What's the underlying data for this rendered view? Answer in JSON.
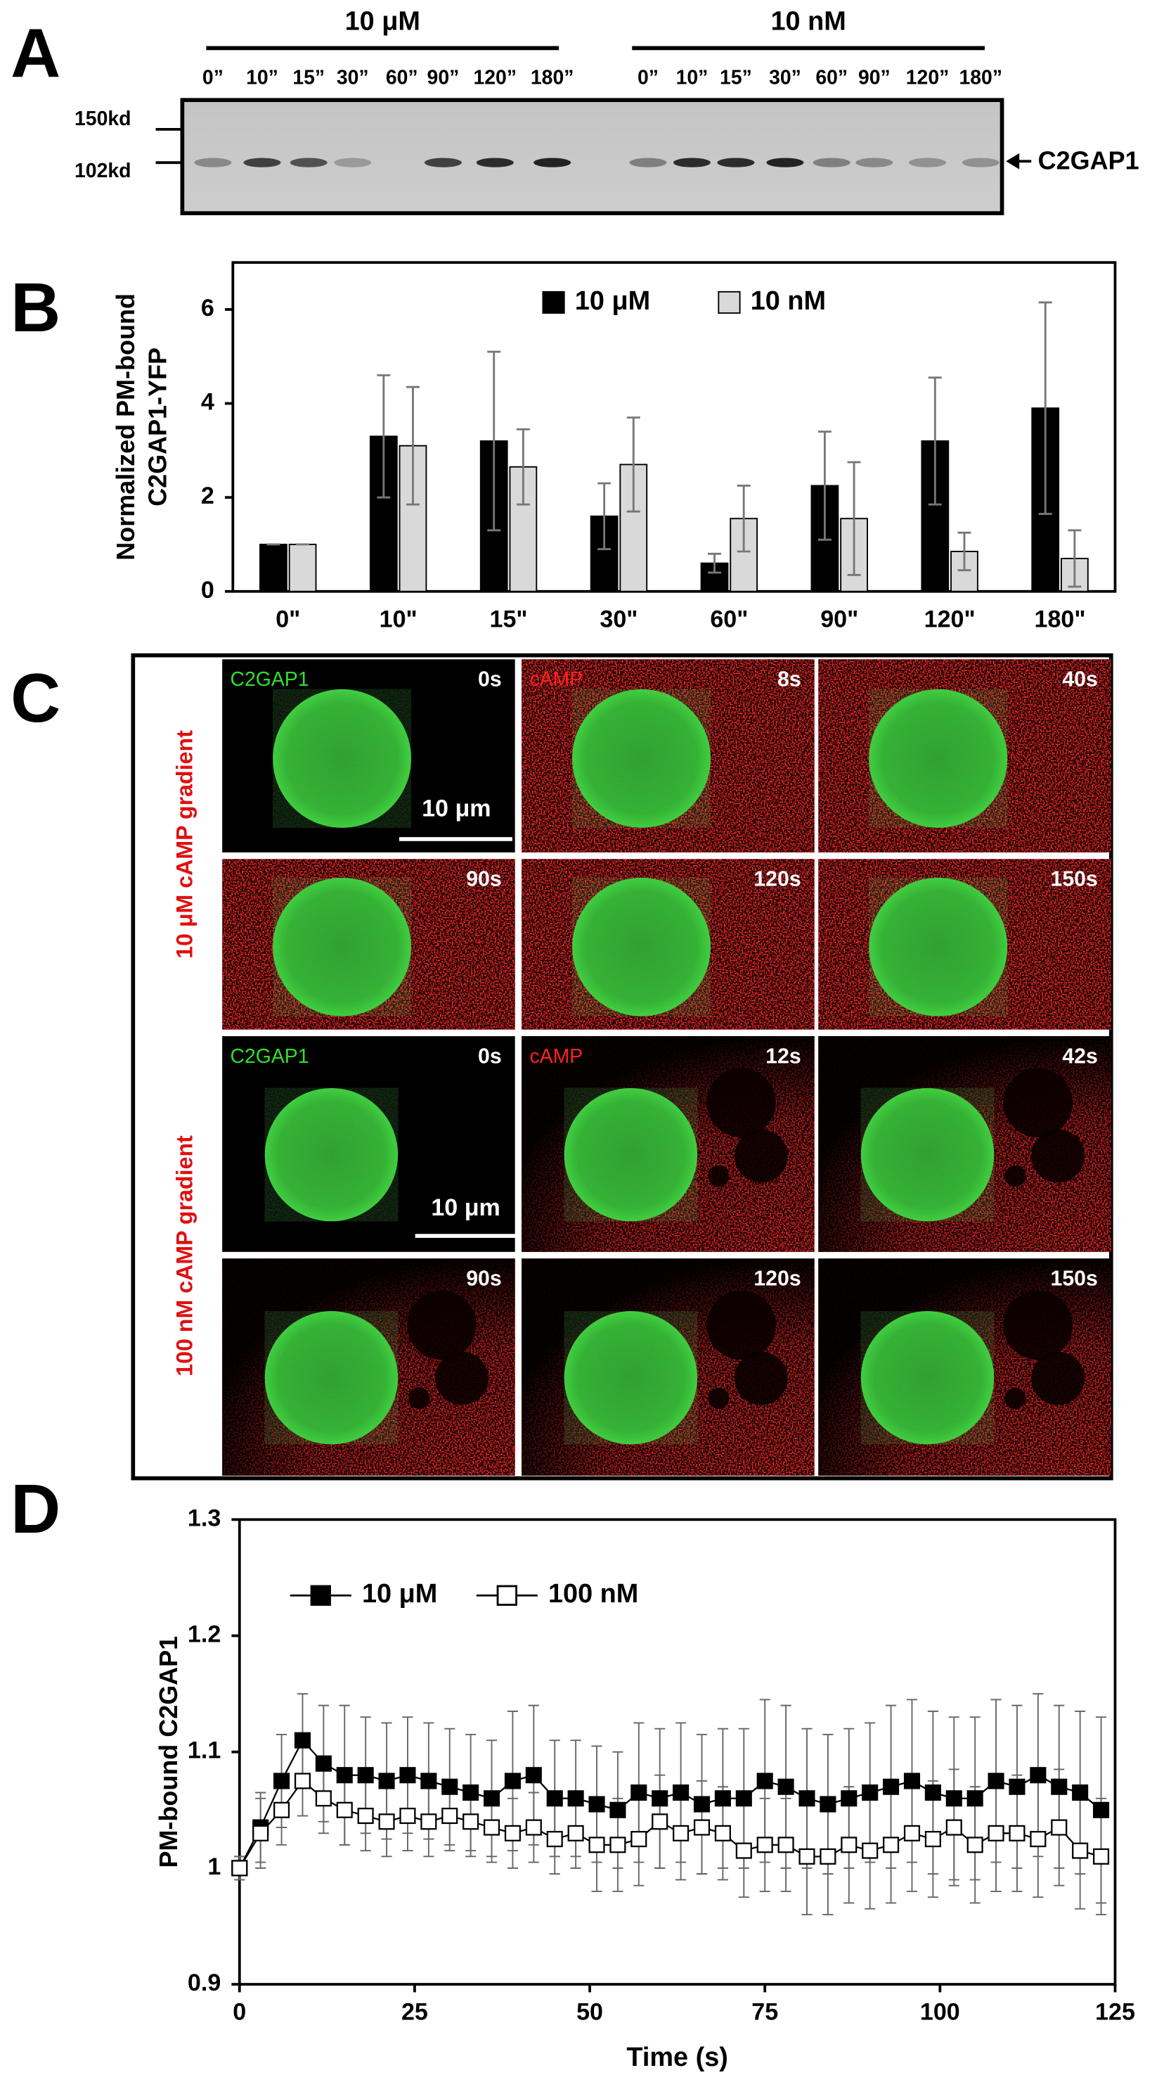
{
  "panel_a": {
    "letter": "A",
    "groups": [
      {
        "label": "10 μM",
        "times": [
          "0”",
          "10”",
          "15”",
          "30”",
          "60”",
          "90”",
          "120”",
          "180”"
        ]
      },
      {
        "label": "10 nM",
        "times": [
          "0”",
          "10”",
          "15”",
          "30”",
          "60”",
          "90”",
          "120”",
          "180”"
        ]
      }
    ],
    "markers": [
      "150kd",
      "102kd"
    ],
    "protein": "C2GAP1"
  },
  "panel_c": {
    "letter": "C",
    "groups": [
      {
        "side_label": "10 μM cAMP gradient",
        "scale_bar": "10 μm",
        "frames": [
          {
            "channel": "C2GAP1",
            "time": "0s"
          },
          {
            "channel": "cAMP",
            "time": "8s"
          },
          {
            "time": "40s"
          },
          {
            "time": "90s"
          },
          {
            "time": "120s"
          },
          {
            "time": "150s"
          }
        ]
      },
      {
        "side_label": "100 nM  cAMP gradient",
        "scale_bar": "10 μm",
        "frames": [
          {
            "channel": "C2GAP1",
            "time": "0s"
          },
          {
            "channel": "cAMP",
            "time": "12s"
          },
          {
            "time": "42s"
          },
          {
            "time": "90s"
          },
          {
            "time": "120s"
          },
          {
            "time": "150s"
          }
        ]
      }
    ]
  },
  "chart_data": [
    {
      "type": "bar",
      "panel": "B",
      "ylabel": [
        "Normalized PM-bound",
        "C2GAP1-YFP"
      ],
      "categories": [
        "0\"",
        "10\"",
        "15\"",
        "30\"",
        "60\"",
        "90\"",
        "120\"",
        "180\""
      ],
      "series": [
        {
          "name": "10 μM",
          "color": "#000000",
          "values": [
            1,
            3.3,
            3.2,
            1.6,
            0.6,
            2.25,
            3.2,
            3.9
          ],
          "errors": [
            0,
            1.3,
            1.9,
            0.7,
            0.2,
            1.15,
            1.35,
            2.25
          ]
        },
        {
          "name": "10 nM",
          "color": "#d9d9d9",
          "values": [
            1,
            3.1,
            2.65,
            2.7,
            1.55,
            1.55,
            0.85,
            0.7
          ],
          "errors": [
            0,
            1.25,
            0.8,
            1.0,
            0.7,
            1.2,
            0.4,
            0.6
          ]
        }
      ],
      "ylim": [
        0,
        7
      ],
      "yticks": [
        0,
        2,
        4,
        6
      ],
      "grid": false,
      "legend": "top"
    },
    {
      "type": "line",
      "panel": "D",
      "xlabel": "Time (s)",
      "ylabel": "PM-bound C2GAP1",
      "x": [
        0,
        3,
        6,
        9,
        12,
        15,
        18,
        21,
        24,
        27,
        30,
        33,
        36,
        39,
        42,
        45,
        48,
        51,
        54,
        57,
        60,
        63,
        66,
        69,
        72,
        75,
        78,
        81,
        84,
        87,
        90,
        93,
        96,
        99,
        102,
        105,
        108,
        111,
        114,
        117,
        120,
        123
      ],
      "series": [
        {
          "name": "10 μM",
          "color": "#000000",
          "values": [
            1.0,
            1.035,
            1.075,
            1.11,
            1.09,
            1.08,
            1.08,
            1.075,
            1.08,
            1.075,
            1.07,
            1.065,
            1.06,
            1.075,
            1.08,
            1.06,
            1.06,
            1.055,
            1.05,
            1.065,
            1.06,
            1.065,
            1.055,
            1.06,
            1.06,
            1.075,
            1.07,
            1.06,
            1.055,
            1.06,
            1.065,
            1.07,
            1.075,
            1.065,
            1.06,
            1.06,
            1.075,
            1.07,
            1.08,
            1.07,
            1.065,
            1.05
          ],
          "errors": [
            0.01,
            0.03,
            0.04,
            0.04,
            0.05,
            0.06,
            0.05,
            0.05,
            0.05,
            0.05,
            0.05,
            0.05,
            0.05,
            0.06,
            0.06,
            0.05,
            0.05,
            0.05,
            0.05,
            0.06,
            0.06,
            0.06,
            0.06,
            0.06,
            0.06,
            0.07,
            0.07,
            0.06,
            0.06,
            0.06,
            0.06,
            0.07,
            0.07,
            0.07,
            0.07,
            0.07,
            0.07,
            0.07,
            0.07,
            0.07,
            0.07,
            0.08
          ]
        },
        {
          "name": "100 nM",
          "color": "#ffffff",
          "values": [
            1.0,
            1.03,
            1.05,
            1.075,
            1.06,
            1.05,
            1.045,
            1.04,
            1.045,
            1.04,
            1.045,
            1.04,
            1.035,
            1.03,
            1.035,
            1.025,
            1.03,
            1.02,
            1.02,
            1.025,
            1.04,
            1.03,
            1.035,
            1.03,
            1.015,
            1.02,
            1.02,
            1.01,
            1.01,
            1.02,
            1.015,
            1.02,
            1.03,
            1.025,
            1.035,
            1.02,
            1.03,
            1.03,
            1.025,
            1.035,
            1.015,
            1.01
          ],
          "errors": [
            0.01,
            0.03,
            0.03,
            0.03,
            0.03,
            0.03,
            0.03,
            0.03,
            0.03,
            0.03,
            0.03,
            0.03,
            0.03,
            0.03,
            0.03,
            0.03,
            0.03,
            0.04,
            0.04,
            0.04,
            0.04,
            0.04,
            0.04,
            0.04,
            0.04,
            0.04,
            0.04,
            0.05,
            0.05,
            0.05,
            0.05,
            0.05,
            0.05,
            0.05,
            0.05,
            0.05,
            0.05,
            0.05,
            0.05,
            0.05,
            0.05,
            0.05
          ]
        }
      ],
      "xlim": [
        0,
        125
      ],
      "xticks": [
        0,
        25,
        50,
        75,
        100,
        125
      ],
      "ylim": [
        0.9,
        1.3
      ],
      "yticks": [
        0.9,
        1,
        1.1,
        1.2,
        1.3
      ],
      "grid": false,
      "legend": "top-left"
    }
  ]
}
